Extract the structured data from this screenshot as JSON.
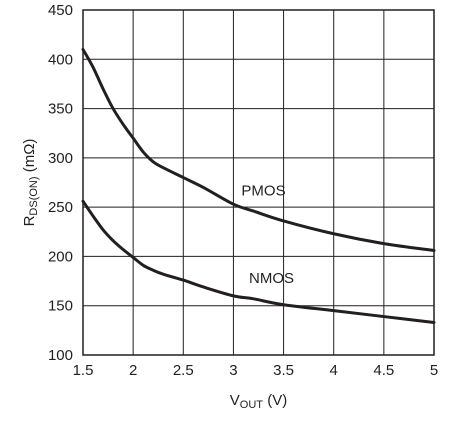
{
  "chart_data": {
    "type": "line",
    "title": "",
    "xlabel": {
      "main": "V",
      "sub": "OUT",
      "unit": " (V)"
    },
    "ylabel": {
      "main": "R",
      "sub": "DS(ON)",
      "unit": " (mΩ)"
    },
    "xlim": [
      1.5,
      5
    ],
    "ylim": [
      100,
      450
    ],
    "xticks": [
      1.5,
      2,
      2.5,
      3,
      3.5,
      4,
      4.5,
      5
    ],
    "xtick_labels": [
      "1.5",
      "2",
      "2.5",
      "3",
      "3.5",
      "4",
      "4.5",
      "5"
    ],
    "yticks": [
      100,
      150,
      200,
      250,
      300,
      350,
      400,
      450
    ],
    "ytick_labels": [
      "100",
      "150",
      "200",
      "250",
      "300",
      "350",
      "400",
      "450"
    ],
    "grid": true,
    "series": [
      {
        "name": "PMOS",
        "label_at": [
          3.3,
          262
        ],
        "x": [
          1.5,
          1.6,
          1.7,
          1.8,
          1.9,
          2.0,
          2.1,
          2.2,
          2.3,
          2.5,
          2.7,
          3.0,
          3.2,
          3.5,
          4.0,
          4.5,
          5.0
        ],
        "y": [
          410,
          392,
          370,
          350,
          334,
          320,
          306,
          296,
          290,
          280,
          270,
          253,
          246,
          236,
          223,
          213,
          206
        ]
      },
      {
        "name": "NMOS",
        "label_at": [
          3.38,
          173
        ],
        "x": [
          1.5,
          1.6,
          1.7,
          1.8,
          1.9,
          2.0,
          2.1,
          2.2,
          2.3,
          2.5,
          2.7,
          3.0,
          3.2,
          3.5,
          4.0,
          4.5,
          5.0
        ],
        "y": [
          256,
          241,
          227,
          216,
          207,
          199,
          191,
          186,
          182,
          176,
          169,
          160,
          157,
          151,
          145,
          139,
          133
        ]
      }
    ]
  }
}
